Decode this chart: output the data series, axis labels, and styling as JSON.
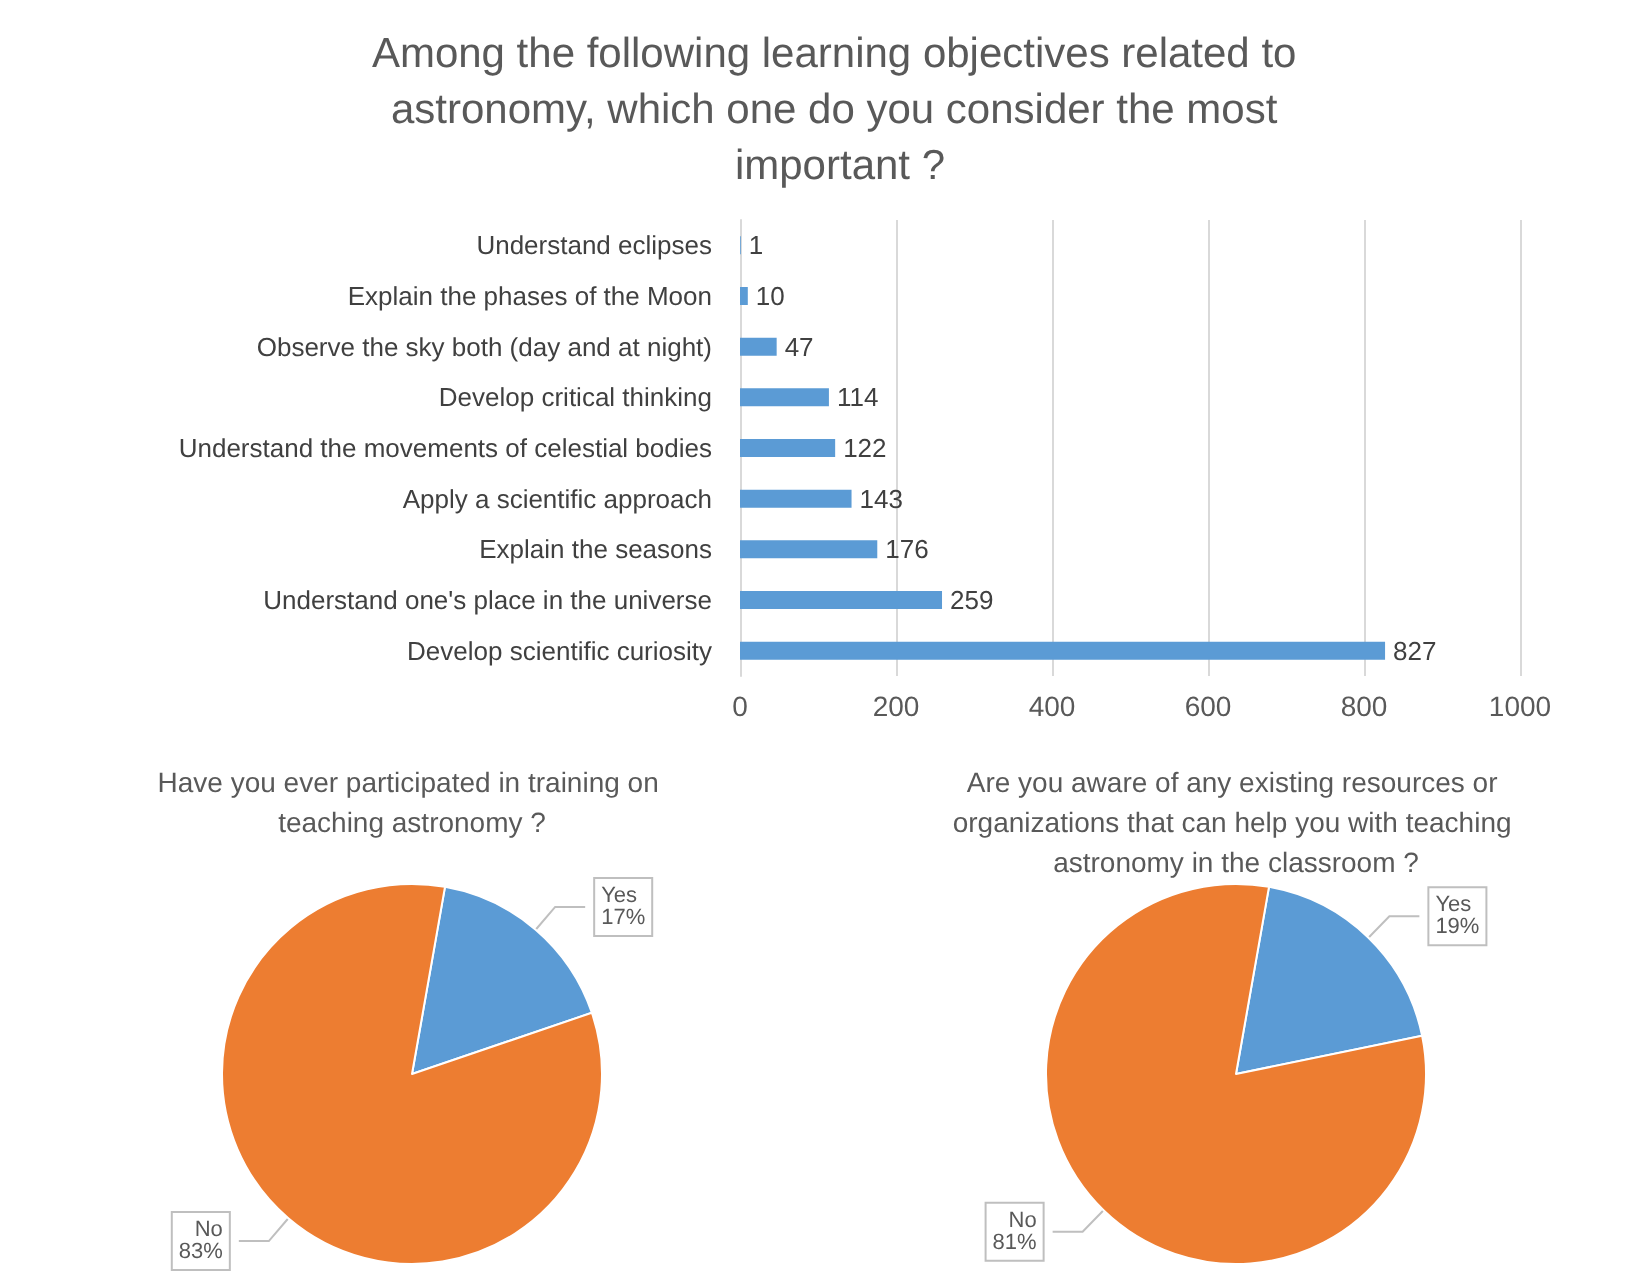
{
  "chart_data": [
    {
      "type": "bar",
      "orientation": "horizontal",
      "title": "Among the following learning objectives related to astronomy, which one do you consider the most important ?",
      "categories": [
        "Understand eclipses",
        "Explain the phases of the Moon",
        "Observe the sky both (day and at night)",
        "Develop critical thinking",
        "Understand the movements of celestial bodies",
        "Apply a scientific approach",
        "Explain the seasons",
        "Understand one's place in the universe",
        "Develop scientific curiosity"
      ],
      "values": [
        1,
        10,
        47,
        114,
        122,
        143,
        176,
        259,
        827
      ],
      "color": "#5b9bd5",
      "xlim": [
        0,
        1000
      ],
      "xticks": [
        0,
        200,
        400,
        600,
        800,
        1000
      ],
      "grid": "x",
      "data_labels": true,
      "legend": false
    },
    {
      "type": "pie",
      "title": "Have you ever participated in training on teaching astronomy ?",
      "categories": [
        "Yes",
        "No"
      ],
      "values": [
        17,
        83
      ],
      "value_labels": [
        "17%",
        "83%"
      ],
      "colors": [
        "#5b9bd5",
        "#ed7d31"
      ],
      "legend": false
    },
    {
      "type": "pie",
      "title": "Are you aware of any existing resources or organizations that can help you with teaching astronomy in the classroom ?",
      "categories": [
        "Yes",
        "No"
      ],
      "values": [
        19,
        81
      ],
      "value_labels": [
        "19%",
        "81%"
      ],
      "colors": [
        "#5b9bd5",
        "#ed7d31"
      ],
      "legend": false
    }
  ]
}
